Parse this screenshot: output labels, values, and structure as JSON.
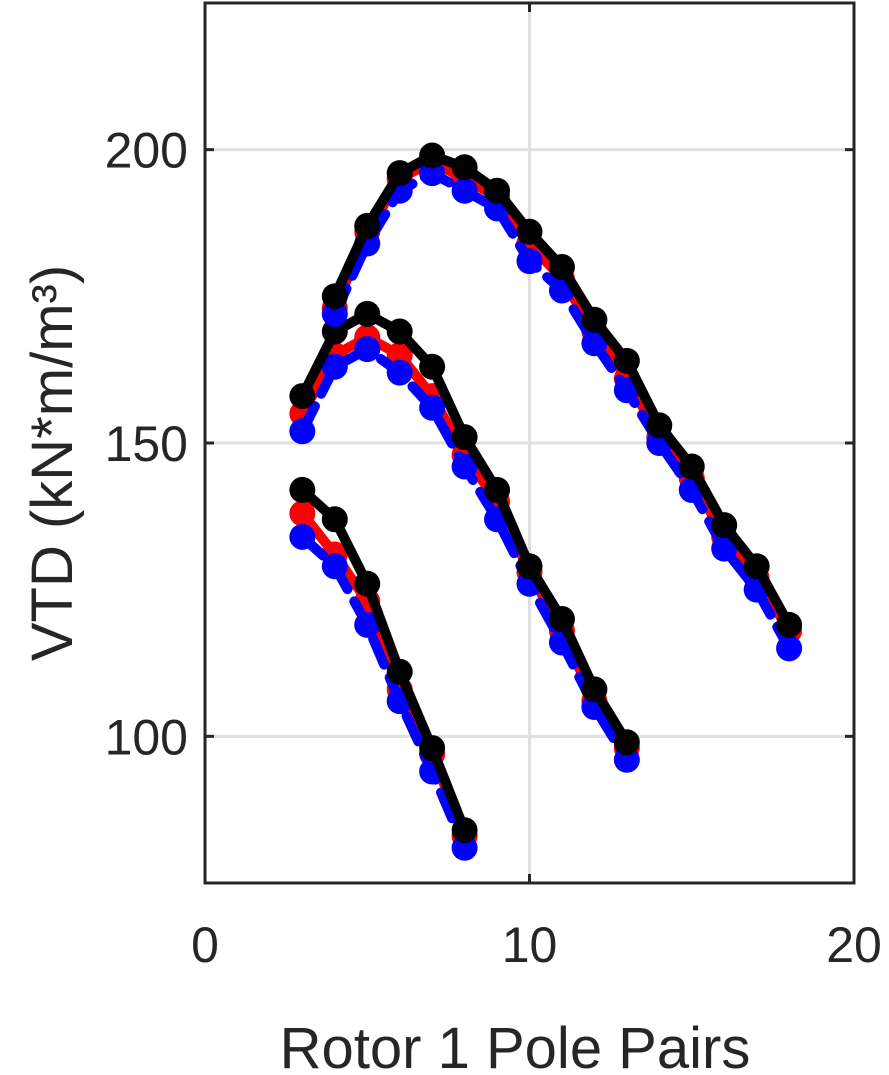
{
  "chart_data": {
    "type": "line",
    "xlabel": "Rotor 1 Pole Pairs",
    "ylabel": "VTD (kN*m/m³)",
    "xlim": [
      0,
      20
    ],
    "ylim": [
      75,
      225
    ],
    "xticks": [
      "0",
      "10",
      "20"
    ],
    "yticks": [
      "100",
      "150",
      "200"
    ],
    "xtick_values": [
      0,
      10,
      20
    ],
    "ytick_values": [
      100,
      150,
      200
    ],
    "grid": true,
    "colors": {
      "red": "#ff0000",
      "blue": "#0000ff",
      "black": "#000000",
      "axis": "#262626",
      "grid": "#dfdfdf"
    },
    "series": [
      {
        "color": "red",
        "style": "solid",
        "x": [
          3,
          4,
          5,
          6,
          7,
          8
        ],
        "y": [
          138,
          131,
          123,
          108,
          97,
          83
        ]
      },
      {
        "color": "blue",
        "style": "dashed",
        "x": [
          3,
          4,
          5,
          6,
          7,
          8
        ],
        "y": [
          134,
          129,
          119,
          106,
          94,
          81
        ]
      },
      {
        "color": "black",
        "style": "solid",
        "x": [
          3,
          4,
          5,
          6,
          7,
          8
        ],
        "y": [
          142,
          137,
          126,
          111,
          98,
          84
        ]
      },
      {
        "color": "red",
        "style": "solid",
        "x": [
          3,
          4,
          5,
          6,
          7,
          8,
          9,
          10,
          11,
          12,
          13
        ],
        "y": [
          155,
          165,
          168,
          165,
          158,
          148,
          140,
          128,
          118,
          106,
          98
        ]
      },
      {
        "color": "blue",
        "style": "dashed",
        "x": [
          3,
          4,
          5,
          6,
          7,
          8,
          9,
          10,
          11,
          12,
          13
        ],
        "y": [
          152,
          163,
          166,
          162,
          156,
          146,
          137,
          126,
          116,
          105,
          96
        ]
      },
      {
        "color": "black",
        "style": "solid",
        "x": [
          3,
          4,
          5,
          6,
          7,
          8,
          9,
          10,
          11,
          12,
          13
        ],
        "y": [
          158,
          169,
          172,
          169,
          163,
          151,
          142,
          129,
          120,
          108,
          99
        ]
      },
      {
        "color": "red",
        "style": "solid",
        "x": [
          3,
          4,
          5,
          6,
          7,
          8,
          9,
          10,
          11,
          12,
          13,
          14,
          15,
          16,
          17,
          18
        ],
        "y": [
          null,
          173,
          186,
          195,
          198,
          195,
          192,
          184,
          178,
          169,
          161,
          151,
          144,
          134,
          127,
          118
        ]
      },
      {
        "color": "blue",
        "style": "dashed",
        "x": [
          3,
          4,
          5,
          6,
          7,
          8,
          9,
          10,
          11,
          12,
          13,
          14,
          15,
          16,
          17,
          18
        ],
        "y": [
          null,
          172,
          184,
          193,
          196,
          193,
          190,
          181,
          176,
          167,
          159,
          150,
          142,
          132,
          125,
          115
        ]
      },
      {
        "color": "black",
        "style": "solid",
        "x": [
          3,
          4,
          5,
          6,
          7,
          8,
          9,
          10,
          11,
          12,
          13,
          14,
          15,
          16,
          17,
          18
        ],
        "y": [
          null,
          175,
          187,
          196,
          199,
          197,
          193,
          186,
          180,
          171,
          164,
          153,
          146,
          136,
          129,
          119
        ]
      }
    ]
  }
}
